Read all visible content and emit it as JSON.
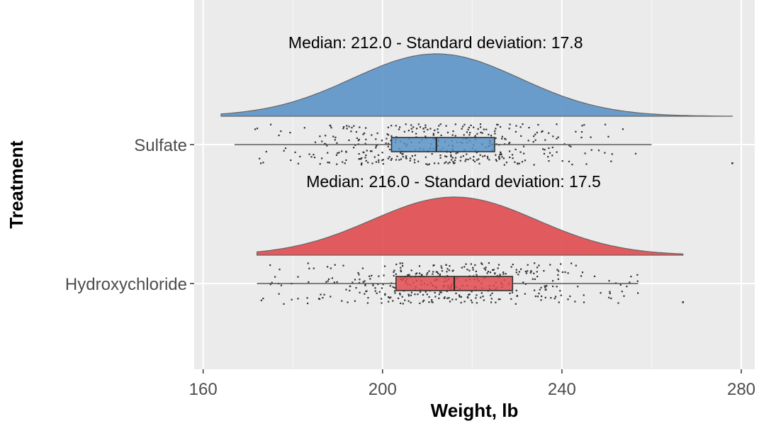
{
  "chart_data": {
    "type": "raincloud",
    "title": "",
    "xlabel": "Weight, lb",
    "ylabel": "Treatment",
    "xlim": [
      158,
      283
    ],
    "xticks": [
      160,
      200,
      240,
      280
    ],
    "grid": true,
    "categories": [
      "Sulfate",
      "Hydroxychloride"
    ],
    "series": [
      {
        "name": "Sulfate",
        "color": "#5b93c7",
        "annotation": "Median: 212.0 - Standard deviation: 17.8",
        "median": 212.0,
        "sd": 17.8,
        "q1": 202,
        "q3": 225,
        "whisker_low": 167,
        "whisker_high": 260,
        "min": 164,
        "max": 278,
        "outliers": [
          278
        ]
      },
      {
        "name": "Hydroxychloride",
        "color": "#e04a4f",
        "annotation": "Median: 216.0 - Standard deviation: 17.5",
        "median": 216.0,
        "sd": 17.5,
        "q1": 203,
        "q3": 229,
        "whisker_low": 172,
        "whisker_high": 257,
        "min": 172,
        "max": 267,
        "outliers": [
          267
        ]
      }
    ]
  }
}
